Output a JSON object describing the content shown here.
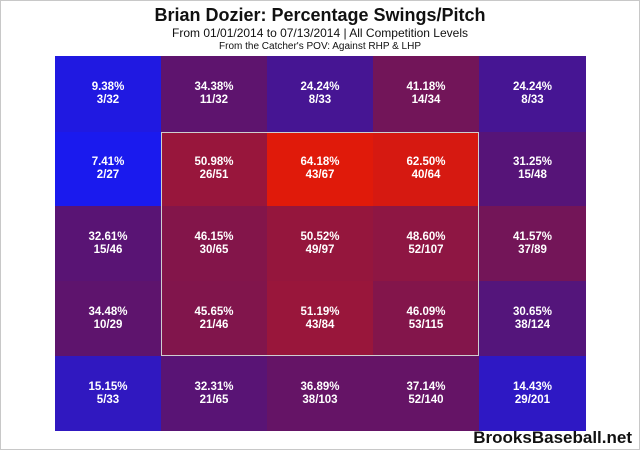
{
  "chart_data": {
    "type": "heatmap",
    "title": "Brian Dozier: Percentage Swings/Pitch",
    "subtitle": "From 01/01/2014 to 07/13/2014 | All Competition Levels",
    "note": "From the Catcher's POV:   Against RHP & LHP",
    "credit": "BrooksBaseball.net",
    "rows": 5,
    "cols": 5,
    "strike_zone": {
      "rows": [
        1,
        3
      ],
      "cols": [
        1,
        3
      ]
    },
    "colors": {
      "low": "#1a1aee",
      "high": "#e01a0a",
      "zone_border": "#cfcfcf"
    },
    "cells": [
      [
        {
          "pct": "9.38%",
          "count": "3/32",
          "value": 9.38
        },
        {
          "pct": "34.38%",
          "count": "11/32",
          "value": 34.38
        },
        {
          "pct": "24.24%",
          "count": "8/33",
          "value": 24.24
        },
        {
          "pct": "41.18%",
          "count": "14/34",
          "value": 41.18
        },
        {
          "pct": "24.24%",
          "count": "8/33",
          "value": 24.24
        }
      ],
      [
        {
          "pct": "7.41%",
          "count": "2/27",
          "value": 7.41
        },
        {
          "pct": "50.98%",
          "count": "26/51",
          "value": 50.98
        },
        {
          "pct": "64.18%",
          "count": "43/67",
          "value": 64.18
        },
        {
          "pct": "62.50%",
          "count": "40/64",
          "value": 62.5
        },
        {
          "pct": "31.25%",
          "count": "15/48",
          "value": 31.25
        }
      ],
      [
        {
          "pct": "32.61%",
          "count": "15/46",
          "value": 32.61
        },
        {
          "pct": "46.15%",
          "count": "30/65",
          "value": 46.15
        },
        {
          "pct": "50.52%",
          "count": "49/97",
          "value": 50.52
        },
        {
          "pct": "48.60%",
          "count": "52/107",
          "value": 48.6
        },
        {
          "pct": "41.57%",
          "count": "37/89",
          "value": 41.57
        }
      ],
      [
        {
          "pct": "34.48%",
          "count": "10/29",
          "value": 34.48
        },
        {
          "pct": "45.65%",
          "count": "21/46",
          "value": 45.65
        },
        {
          "pct": "51.19%",
          "count": "43/84",
          "value": 51.19
        },
        {
          "pct": "46.09%",
          "count": "53/115",
          "value": 46.09
        },
        {
          "pct": "30.65%",
          "count": "38/124",
          "value": 30.65
        }
      ],
      [
        {
          "pct": "15.15%",
          "count": "5/33",
          "value": 15.15
        },
        {
          "pct": "32.31%",
          "count": "21/65",
          "value": 32.31
        },
        {
          "pct": "36.89%",
          "count": "38/103",
          "value": 36.89
        },
        {
          "pct": "37.14%",
          "count": "52/140",
          "value": 37.14
        },
        {
          "pct": "14.43%",
          "count": "29/201",
          "value": 14.43
        }
      ]
    ]
  }
}
